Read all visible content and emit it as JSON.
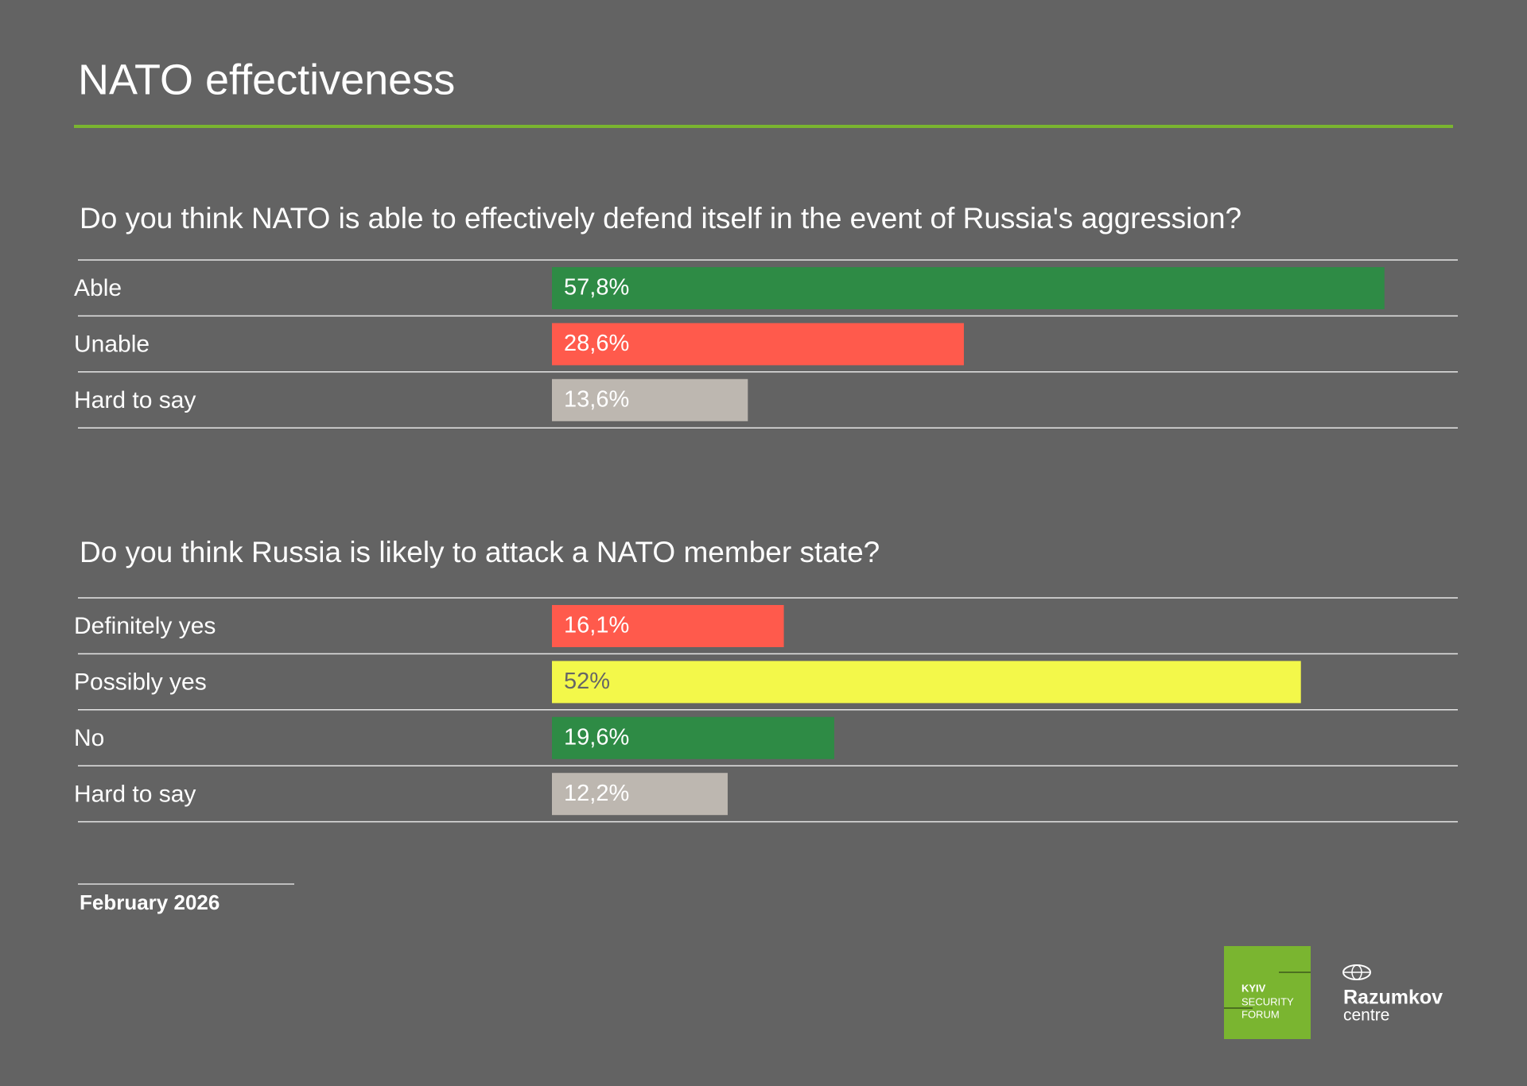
{
  "title": "NATO effectiveness",
  "date": "February 2026",
  "logos": {
    "forum": [
      "KYIV",
      "SECURITY",
      "FORUM"
    ],
    "centre": {
      "name": "Razumkov",
      "sub": "centre"
    }
  },
  "chart_data": [
    {
      "type": "bar",
      "orientation": "horizontal",
      "title": "Do you think NATO is able to effectively defend itself in the event of Russia's aggression?",
      "categories": [
        "Able",
        "Unable",
        "Hard to say"
      ],
      "values": [
        57.8,
        28.6,
        13.6
      ],
      "value_labels": [
        "57,8%",
        "28,6%",
        "13,6%"
      ],
      "colors": [
        "#2e8b45",
        "#ff5a4c",
        "#bdb7b0"
      ]
    },
    {
      "type": "bar",
      "orientation": "horizontal",
      "title": "Do you think Russia is likely to attack a NATO member state?",
      "categories": [
        "Definitely yes",
        "Possibly yes",
        "No",
        "Hard to say"
      ],
      "values": [
        16.1,
        52,
        19.6,
        12.2
      ],
      "value_labels": [
        "16,1%",
        "52%",
        "19,6%",
        "12,2%"
      ],
      "colors": [
        "#ff5a4c",
        "#f3f84a",
        "#2e8b45",
        "#bdb7b0"
      ]
    }
  ]
}
